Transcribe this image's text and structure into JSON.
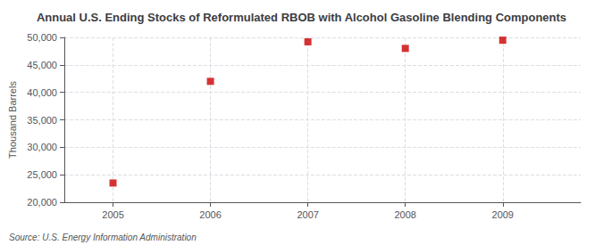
{
  "chart_data": {
    "type": "scatter",
    "title": "Annual U.S. Ending Stocks of Reformulated RBOB with Alcohol Gasoline Blending Components",
    "ylabel": "Thousand Barrels",
    "annotations": [
      "Source: U.S. Energy Information Administration"
    ],
    "x": [
      2005,
      2006,
      2007,
      2008,
      2009
    ],
    "values": [
      23500,
      42000,
      49200,
      48000,
      49500
    ],
    "color": "#cc0000",
    "marker": "square",
    "xlim": [
      2004.5,
      2009.8
    ],
    "ylim": [
      20000,
      50000
    ],
    "xticks": [
      2005,
      2006,
      2007,
      2008,
      2009
    ],
    "yticks": [
      {
        "value": 20000,
        "label": "20,000"
      },
      {
        "value": 25000,
        "label": "25,000"
      },
      {
        "value": 30000,
        "label": "30,000"
      },
      {
        "value": 35000,
        "label": "35,000"
      },
      {
        "value": 40000,
        "label": "40,000"
      },
      {
        "value": 45000,
        "label": "45,000"
      },
      {
        "value": 50000,
        "label": "50,000"
      }
    ],
    "grid": true
  }
}
